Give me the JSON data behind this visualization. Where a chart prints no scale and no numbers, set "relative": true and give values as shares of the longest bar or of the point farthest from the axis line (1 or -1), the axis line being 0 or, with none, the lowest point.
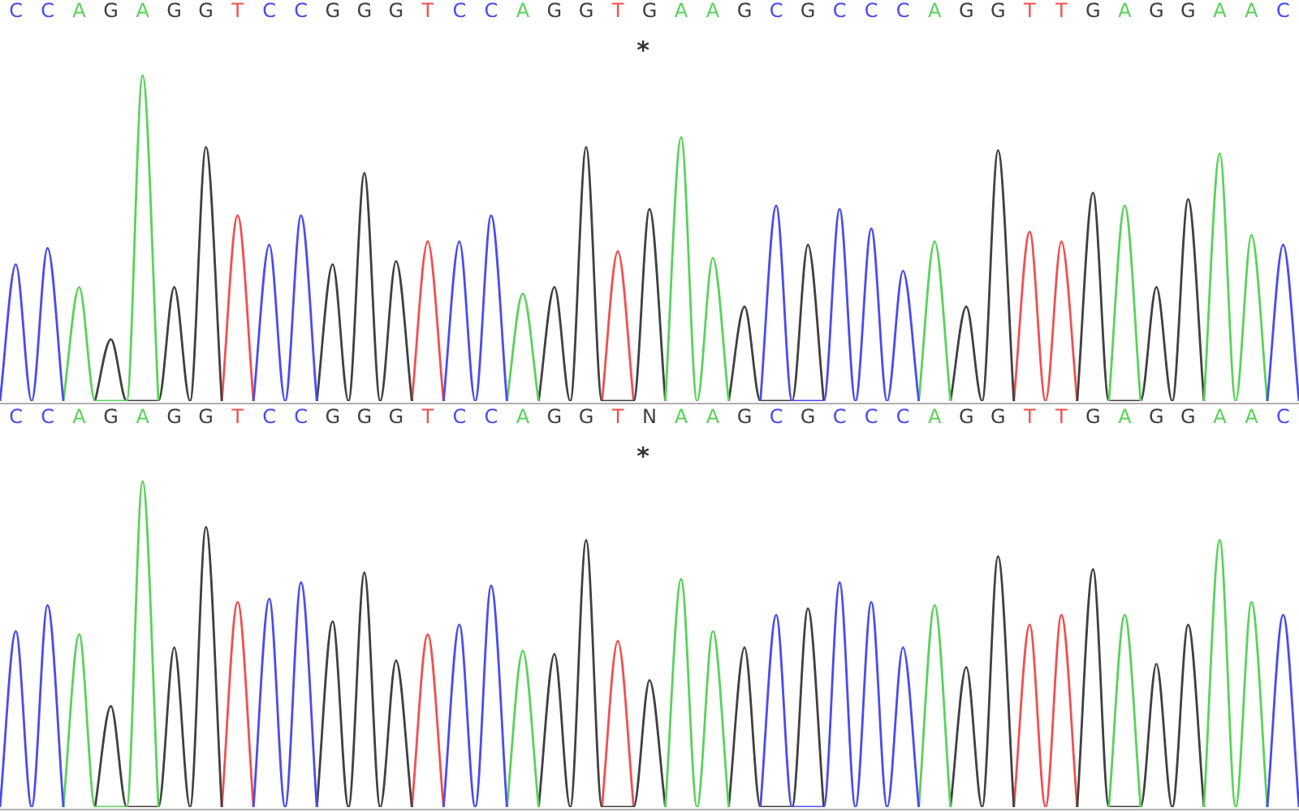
{
  "chart_data": [
    {
      "type": "line",
      "relative": true,
      "annotations": [
        "*"
      ],
      "categories": [
        null,
        "C",
        null,
        "C",
        null,
        "A",
        null,
        "G",
        null,
        "A",
        null,
        "G",
        null,
        "G",
        null,
        "T",
        null,
        "C",
        null,
        "C",
        null,
        "G",
        null,
        "G",
        null,
        "G",
        null,
        "T",
        null,
        "C",
        null,
        "C",
        null,
        "A",
        null,
        "G",
        null,
        "G",
        null,
        "T",
        null,
        "G",
        null,
        "A",
        null,
        "A",
        null,
        "G",
        null,
        "C",
        null,
        "G",
        null,
        "C",
        null,
        "C",
        null,
        "C",
        null,
        "A",
        null,
        "G",
        null,
        "G",
        null,
        "T",
        null,
        "T",
        null,
        "G",
        null,
        "A",
        null,
        "G",
        null,
        "G",
        null,
        "A",
        null,
        "A",
        null,
        "C",
        null
      ],
      "series": [
        {
          "color": "#4b4bf0",
          "values": [
            0,
            0.42,
            0,
            0.47,
            0,
            null,
            null,
            null,
            null,
            null,
            null,
            null,
            null,
            null,
            null,
            null,
            0,
            0.48,
            0,
            0.57,
            0,
            null,
            null,
            null,
            null,
            null,
            null,
            null,
            0,
            0.49,
            0,
            0.57,
            0,
            null,
            null,
            null,
            null,
            null,
            null,
            null,
            null,
            null,
            null,
            null,
            null,
            null,
            null,
            null,
            0,
            0.6,
            0,
            0,
            0,
            0.59,
            0,
            0.53,
            0,
            0.4,
            0,
            null,
            null,
            null,
            null,
            null,
            null,
            null,
            null,
            null,
            null,
            null,
            null,
            null,
            null,
            null,
            null,
            null,
            null,
            null,
            null,
            null,
            0,
            0.48,
            0
          ]
        },
        {
          "color": "#5ad25a",
          "values": [
            null,
            null,
            null,
            null,
            0,
            0.35,
            0,
            0,
            0,
            1,
            0,
            null,
            null,
            null,
            null,
            null,
            null,
            null,
            null,
            null,
            null,
            null,
            null,
            null,
            null,
            null,
            null,
            null,
            null,
            null,
            null,
            null,
            0,
            0.33,
            0,
            null,
            null,
            null,
            null,
            null,
            null,
            null,
            0,
            0.81,
            0,
            0.44,
            0,
            null,
            null,
            null,
            null,
            null,
            null,
            null,
            null,
            null,
            null,
            null,
            0,
            0.49,
            0,
            null,
            null,
            null,
            null,
            null,
            null,
            null,
            null,
            null,
            0,
            0.6,
            0,
            null,
            null,
            null,
            0,
            0.76,
            0,
            0.51,
            0,
            null,
            null
          ]
        },
        {
          "color": "#404040",
          "values": [
            null,
            null,
            null,
            null,
            null,
            null,
            0,
            0.19,
            0,
            0,
            0,
            0.35,
            0,
            0.78,
            0,
            null,
            null,
            null,
            null,
            null,
            0,
            0.42,
            0,
            0.7,
            0,
            0.43,
            0,
            null,
            null,
            null,
            null,
            null,
            null,
            null,
            0,
            0.35,
            0,
            0.78,
            0,
            0,
            0,
            0.59,
            0,
            null,
            null,
            null,
            0,
            0.29,
            0,
            0,
            0,
            0.48,
            0,
            null,
            null,
            null,
            null,
            null,
            null,
            null,
            0,
            0.29,
            0,
            0.77,
            0,
            null,
            null,
            null,
            0,
            0.64,
            0,
            0,
            0,
            0.35,
            0,
            0.62,
            0,
            null,
            null,
            null,
            null,
            null,
            null
          ]
        },
        {
          "color": "#f05050",
          "values": [
            null,
            null,
            null,
            null,
            null,
            null,
            null,
            null,
            null,
            null,
            null,
            null,
            null,
            null,
            0,
            0.57,
            0,
            null,
            null,
            null,
            null,
            null,
            null,
            null,
            null,
            null,
            0,
            0.49,
            0,
            null,
            null,
            null,
            null,
            null,
            null,
            null,
            null,
            null,
            0,
            0.46,
            0,
            null,
            null,
            null,
            null,
            null,
            null,
            null,
            null,
            null,
            null,
            null,
            null,
            null,
            null,
            null,
            null,
            null,
            null,
            null,
            null,
            null,
            null,
            null,
            0,
            0.52,
            0,
            0.49,
            0,
            null,
            null,
            null,
            null,
            null,
            null,
            null,
            null,
            null,
            null,
            null,
            null,
            null,
            null
          ]
        }
      ]
    },
    {
      "type": "line",
      "relative": true,
      "annotations": [
        "*"
      ],
      "categories": [
        null,
        "C",
        null,
        "C",
        null,
        "A",
        null,
        "G",
        null,
        "A",
        null,
        "G",
        null,
        "G",
        null,
        "T",
        null,
        "C",
        null,
        "C",
        null,
        "G",
        null,
        "G",
        null,
        "G",
        null,
        "T",
        null,
        "C",
        null,
        "C",
        null,
        "A",
        null,
        "G",
        null,
        "G",
        null,
        "T",
        null,
        "N",
        null,
        "A",
        null,
        "A",
        null,
        "G",
        null,
        "C",
        null,
        "G",
        null,
        "C",
        null,
        "C",
        null,
        "C",
        null,
        "A",
        null,
        "G",
        null,
        "G",
        null,
        "T",
        null,
        "T",
        null,
        "G",
        null,
        "A",
        null,
        "G",
        null,
        "G",
        null,
        "A",
        null,
        "A",
        null,
        "C",
        null
      ],
      "series": [
        {
          "color": "#4b4bf0",
          "values": [
            0,
            0.54,
            0,
            0.62,
            0,
            null,
            null,
            null,
            null,
            null,
            null,
            null,
            null,
            null,
            null,
            null,
            0,
            0.64,
            0,
            0.69,
            0,
            null,
            null,
            null,
            null,
            null,
            null,
            null,
            0,
            0.56,
            0,
            0.68,
            0,
            null,
            null,
            null,
            null,
            null,
            null,
            null,
            null,
            null,
            null,
            null,
            null,
            null,
            null,
            null,
            0,
            0.59,
            0,
            0,
            0,
            0.69,
            0,
            0.63,
            0,
            0.49,
            0,
            null,
            null,
            null,
            null,
            null,
            null,
            null,
            null,
            null,
            null,
            null,
            null,
            null,
            null,
            null,
            null,
            null,
            null,
            null,
            null,
            null,
            0,
            0.59,
            0
          ]
        },
        {
          "color": "#5ad25a",
          "values": [
            null,
            null,
            null,
            null,
            0,
            0.53,
            0,
            0,
            0,
            1,
            0,
            null,
            null,
            null,
            null,
            null,
            null,
            null,
            null,
            null,
            null,
            null,
            null,
            null,
            null,
            null,
            null,
            null,
            null,
            null,
            null,
            null,
            0,
            0.48,
            0,
            null,
            null,
            null,
            null,
            null,
            null,
            null,
            0,
            0.7,
            0,
            0.54,
            0,
            null,
            null,
            null,
            null,
            null,
            null,
            null,
            null,
            null,
            null,
            null,
            0,
            0.62,
            0,
            null,
            null,
            null,
            null,
            null,
            null,
            null,
            null,
            null,
            0,
            0.59,
            0,
            null,
            null,
            null,
            0,
            0.82,
            0,
            0.63,
            0,
            null,
            null
          ]
        },
        {
          "color": "#404040",
          "values": [
            null,
            null,
            null,
            null,
            null,
            null,
            0,
            0.31,
            0,
            0,
            0,
            0.49,
            0,
            0.86,
            0,
            null,
            null,
            null,
            null,
            null,
            0,
            0.57,
            0,
            0.72,
            0,
            0.45,
            0,
            null,
            null,
            null,
            null,
            null,
            null,
            null,
            0,
            0.47,
            0,
            0.82,
            0,
            0,
            0,
            0.39,
            0,
            null,
            null,
            null,
            0,
            0.49,
            0,
            0,
            0,
            0.61,
            0,
            null,
            null,
            null,
            null,
            null,
            null,
            null,
            0,
            0.43,
            0,
            0.77,
            0,
            null,
            null,
            null,
            0,
            0.73,
            0,
            0,
            0,
            0.44,
            0,
            0.56,
            0,
            null,
            null,
            null,
            null,
            null,
            null
          ]
        },
        {
          "color": "#f05050",
          "values": [
            null,
            null,
            null,
            null,
            null,
            null,
            null,
            null,
            null,
            null,
            null,
            null,
            null,
            null,
            0,
            0.63,
            0,
            null,
            null,
            null,
            null,
            null,
            null,
            null,
            null,
            null,
            0,
            0.53,
            0,
            null,
            null,
            null,
            null,
            null,
            null,
            null,
            null,
            null,
            0,
            0.51,
            0,
            null,
            null,
            null,
            null,
            null,
            null,
            null,
            null,
            null,
            null,
            null,
            null,
            null,
            null,
            null,
            null,
            null,
            null,
            null,
            null,
            null,
            null,
            null,
            0,
            0.56,
            0,
            0.59,
            0,
            null,
            null,
            null,
            null,
            null,
            null,
            null,
            null,
            null,
            null,
            null,
            null,
            null,
            null
          ]
        }
      ]
    }
  ]
}
